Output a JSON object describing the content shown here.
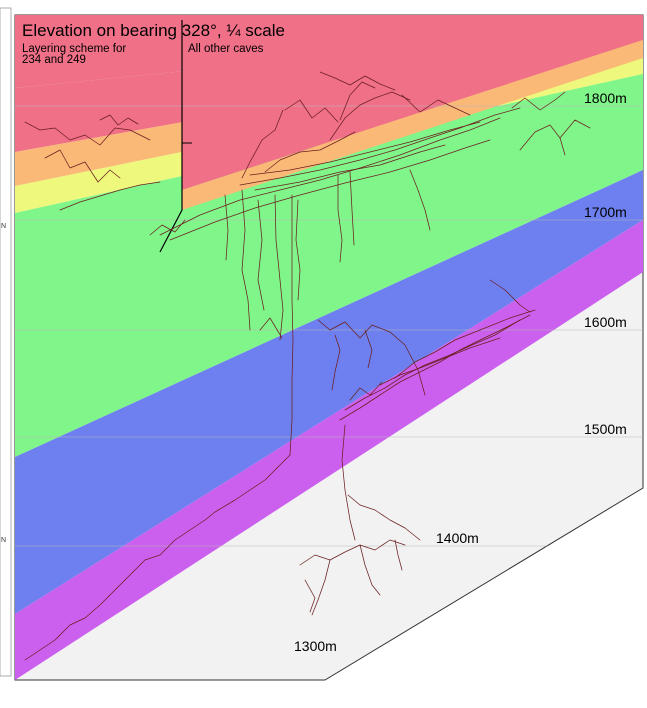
{
  "title": "Elevation on bearing 328°, ¼ scale",
  "scheme_labels": {
    "left": "Layering scheme for\n234 and 249",
    "right": "All other caves"
  },
  "elevation_labels": [
    "1800m",
    "1700m",
    "1600m",
    "1500m",
    "1400m",
    "1300m"
  ],
  "left_margin_marks": [
    "N",
    "N"
  ],
  "layer_colors": {
    "red": "#f07088",
    "orange": "#fbb978",
    "yellow": "#eef87c",
    "green": "#80f68a",
    "blue": "#6e80f0",
    "purple": "#cc60ee",
    "background": "#f2f2f2"
  },
  "survey_color": "#6b1f1f"
}
